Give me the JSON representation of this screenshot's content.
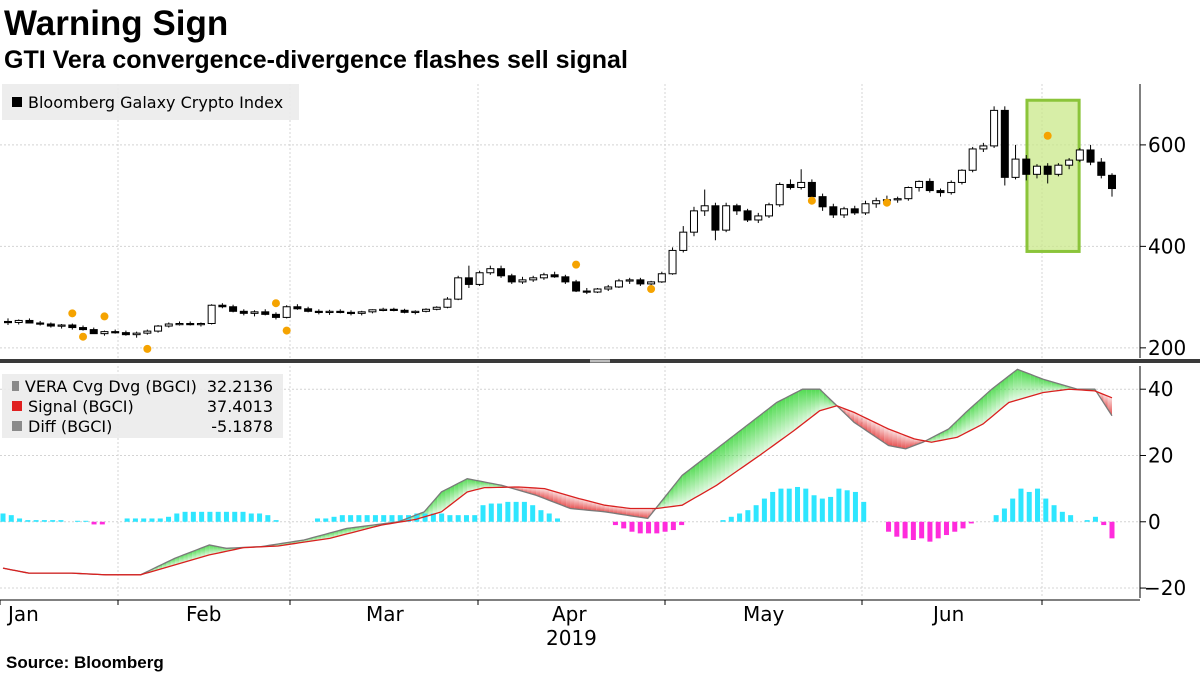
{
  "header": {
    "title": "Warning Sign",
    "subtitle": "GTI Vera convergence-divergence flashes sell signal"
  },
  "footer": {
    "source": "Source: Bloomberg"
  },
  "colors": {
    "candle_up": "#ffffff",
    "candle_down": "#000000",
    "signal_dots": "#f5a300",
    "highlight_fill": "#c9e88a",
    "highlight_stroke": "#8bc43a",
    "vera_line": "#7a7a7a",
    "signal_line": "#d9201f",
    "hist_positive": "#2ee6ff",
    "hist_negative": "#ff2bdc",
    "fill_above": "#3fd73f",
    "fill_below": "#e23a3a"
  },
  "chart_data": [
    {
      "type": "candlestick",
      "legend": [
        {
          "name": "Bloomberg Galaxy Crypto Index",
          "color": "#000000"
        }
      ],
      "x_ticks": [
        "Jan",
        "Feb",
        "Mar",
        "Apr",
        "May",
        "Jun"
      ],
      "x_year": "2019",
      "y_ticks": [
        200,
        400,
        600
      ],
      "ylim": [
        180,
        720
      ],
      "ohlc": [
        [
          252,
          258,
          245,
          250
        ],
        [
          250,
          256,
          246,
          254
        ],
        [
          254,
          258,
          248,
          249
        ],
        [
          249,
          253,
          244,
          247
        ],
        [
          247,
          250,
          240,
          243
        ],
        [
          243,
          247,
          238,
          245
        ],
        [
          245,
          248,
          236,
          240
        ],
        [
          240,
          244,
          234,
          236
        ],
        [
          236,
          240,
          228,
          228
        ],
        [
          228,
          234,
          224,
          232
        ],
        [
          232,
          236,
          228,
          230
        ],
        [
          230,
          234,
          224,
          226
        ],
        [
          226,
          232,
          220,
          229
        ],
        [
          229,
          236,
          226,
          233
        ],
        [
          233,
          245,
          230,
          243
        ],
        [
          243,
          250,
          240,
          247
        ],
        [
          247,
          252,
          244,
          248
        ],
        [
          248,
          252,
          244,
          246
        ],
        [
          246,
          250,
          242,
          248
        ],
        [
          248,
          286,
          246,
          284
        ],
        [
          284,
          288,
          278,
          281
        ],
        [
          281,
          285,
          270,
          272
        ],
        [
          272,
          276,
          264,
          268
        ],
        [
          268,
          274,
          262,
          271
        ],
        [
          271,
          276,
          264,
          266
        ],
        [
          266,
          270,
          256,
          260
        ],
        [
          260,
          284,
          258,
          281
        ],
        [
          281,
          286,
          275,
          277
        ],
        [
          277,
          281,
          270,
          272
        ],
        [
          272,
          276,
          266,
          270
        ],
        [
          270,
          275,
          265,
          272
        ],
        [
          272,
          276,
          268,
          270
        ],
        [
          270,
          274,
          264,
          268
        ],
        [
          268,
          273,
          264,
          271
        ],
        [
          271,
          276,
          268,
          275
        ],
        [
          275,
          279,
          272,
          276
        ],
        [
          276,
          279,
          272,
          274
        ],
        [
          274,
          277,
          268,
          270
        ],
        [
          270,
          274,
          266,
          272
        ],
        [
          272,
          278,
          270,
          276
        ],
        [
          276,
          282,
          274,
          280
        ],
        [
          280,
          300,
          278,
          296
        ],
        [
          296,
          342,
          294,
          338
        ],
        [
          338,
          362,
          318,
          325
        ],
        [
          325,
          352,
          322,
          348
        ],
        [
          348,
          362,
          344,
          356
        ],
        [
          356,
          362,
          338,
          342
        ],
        [
          342,
          346,
          326,
          330
        ],
        [
          330,
          340,
          326,
          334
        ],
        [
          334,
          342,
          330,
          338
        ],
        [
          338,
          348,
          334,
          344
        ],
        [
          344,
          350,
          338,
          340
        ],
        [
          340,
          344,
          326,
          330
        ],
        [
          330,
          334,
          310,
          312
        ],
        [
          312,
          318,
          306,
          310
        ],
        [
          310,
          318,
          308,
          316
        ],
        [
          316,
          324,
          312,
          320
        ],
        [
          320,
          336,
          318,
          332
        ],
        [
          332,
          338,
          326,
          334
        ],
        [
          334,
          338,
          322,
          326
        ],
        [
          326,
          332,
          322,
          330
        ],
        [
          330,
          350,
          328,
          346
        ],
        [
          346,
          398,
          344,
          392
        ],
        [
          392,
          440,
          388,
          428
        ],
        [
          428,
          478,
          420,
          470
        ],
        [
          470,
          512,
          460,
          480
        ],
        [
          480,
          486,
          412,
          432
        ],
        [
          432,
          486,
          428,
          480
        ],
        [
          480,
          484,
          462,
          470
        ],
        [
          470,
          474,
          448,
          452
        ],
        [
          452,
          466,
          446,
          460
        ],
        [
          460,
          486,
          456,
          482
        ],
        [
          482,
          526,
          478,
          522
        ],
        [
          522,
          532,
          512,
          516
        ],
        [
          516,
          552,
          512,
          526
        ],
        [
          526,
          532,
          490,
          498
        ],
        [
          498,
          504,
          470,
          478
        ],
        [
          478,
          484,
          456,
          462
        ],
        [
          462,
          478,
          456,
          474
        ],
        [
          474,
          480,
          462,
          466
        ],
        [
          466,
          490,
          462,
          484
        ],
        [
          484,
          496,
          476,
          490
        ],
        [
          490,
          500,
          482,
          492
        ],
        [
          492,
          498,
          486,
          494
        ],
        [
          494,
          518,
          490,
          516
        ],
        [
          516,
          530,
          508,
          528
        ],
        [
          528,
          534,
          506,
          510
        ],
        [
          510,
          514,
          498,
          506
        ],
        [
          506,
          530,
          502,
          526
        ],
        [
          526,
          552,
          522,
          550
        ],
        [
          550,
          596,
          546,
          592
        ],
        [
          592,
          604,
          586,
          598
        ],
        [
          598,
          676,
          594,
          668
        ],
        [
          668,
          676,
          520,
          536
        ],
        [
          536,
          600,
          532,
          572
        ],
        [
          572,
          580,
          530,
          542
        ],
        [
          542,
          562,
          534,
          558
        ],
        [
          558,
          564,
          524,
          542
        ],
        [
          542,
          564,
          538,
          560
        ],
        [
          560,
          574,
          552,
          570
        ],
        [
          570,
          594,
          566,
          590
        ],
        [
          590,
          600,
          560,
          566
        ],
        [
          566,
          574,
          534,
          540
        ],
        [
          540,
          544,
          498,
          514
        ]
      ],
      "signals": [
        {
          "i": 6,
          "y": 268
        },
        {
          "i": 7,
          "y": 222
        },
        {
          "i": 9,
          "y": 262
        },
        {
          "i": 13,
          "y": 198
        },
        {
          "i": 25,
          "y": 288
        },
        {
          "i": 26,
          "y": 234
        },
        {
          "i": 53,
          "y": 364
        },
        {
          "i": 60,
          "y": 316
        },
        {
          "i": 75,
          "y": 490
        },
        {
          "i": 82,
          "y": 486
        },
        {
          "i": 97,
          "y": 618
        }
      ],
      "highlight": {
        "from_index": 96,
        "to_index": 99,
        "y_low": 390,
        "y_high": 688
      }
    },
    {
      "type": "line",
      "legend": [
        {
          "name": "VERA Cvg Dvg (BGCI)",
          "value": "32.2136",
          "color": "#8a8a8a"
        },
        {
          "name": "Signal (BGCI)",
          "value": "37.4013",
          "color": "#e02020"
        },
        {
          "name": "Diff (BGCI)",
          "value": "-5.1878",
          "color": "#8a8a8a"
        }
      ],
      "y_ticks": [
        -20,
        0,
        20,
        40
      ],
      "ylim": [
        -23,
        47
      ],
      "vera_keys": [
        [
          0,
          -14
        ],
        [
          3,
          -15.5
        ],
        [
          8,
          -15.5
        ],
        [
          12,
          -16
        ],
        [
          16,
          -16
        ],
        [
          20,
          -11
        ],
        [
          24,
          -7
        ],
        [
          26,
          -8
        ],
        [
          30,
          -7.5
        ],
        [
          35,
          -5.5
        ],
        [
          40,
          -2
        ],
        [
          46,
          0
        ],
        [
          49,
          3
        ],
        [
          51,
          9
        ],
        [
          54,
          13
        ],
        [
          58,
          11
        ],
        [
          62,
          8
        ],
        [
          66,
          4
        ],
        [
          70,
          3
        ],
        [
          75,
          1
        ],
        [
          79,
          14
        ],
        [
          83,
          22
        ],
        [
          86,
          28
        ],
        [
          90,
          36
        ],
        [
          93,
          40
        ],
        [
          95,
          40
        ],
        [
          99,
          30
        ],
        [
          103,
          23
        ],
        [
          105,
          22
        ],
        [
          107,
          24
        ],
        [
          110,
          28
        ],
        [
          112,
          33
        ],
        [
          115,
          40
        ],
        [
          118,
          46
        ],
        [
          121,
          43
        ],
        [
          125,
          40
        ],
        [
          127,
          40
        ],
        [
          129,
          32
        ]
      ],
      "signal_keys": [
        [
          0,
          -14
        ],
        [
          3,
          -15.5
        ],
        [
          8,
          -15.5
        ],
        [
          12,
          -16
        ],
        [
          16,
          -16
        ],
        [
          20,
          -13
        ],
        [
          24,
          -10
        ],
        [
          28,
          -7.8
        ],
        [
          32,
          -7.3
        ],
        [
          38,
          -5
        ],
        [
          44,
          -1
        ],
        [
          48,
          0.7
        ],
        [
          51,
          3
        ],
        [
          54,
          9
        ],
        [
          56,
          10.3
        ],
        [
          60,
          10.5
        ],
        [
          63,
          10
        ],
        [
          67,
          7
        ],
        [
          70,
          5
        ],
        [
          73,
          4
        ],
        [
          76,
          4
        ],
        [
          79,
          5
        ],
        [
          83,
          11
        ],
        [
          88,
          20
        ],
        [
          92,
          27.5
        ],
        [
          95,
          33.5
        ],
        [
          97,
          35
        ],
        [
          99,
          33
        ],
        [
          103,
          28
        ],
        [
          106,
          25
        ],
        [
          108,
          24
        ],
        [
          111,
          25.5
        ],
        [
          114,
          29.5
        ],
        [
          117,
          36
        ],
        [
          121,
          39
        ],
        [
          124,
          40
        ],
        [
          127,
          39.5
        ],
        [
          129,
          37.4
        ]
      ],
      "hist": [
        2.5,
        2,
        1,
        0.5,
        0.5,
        0.5,
        0.5,
        0.5,
        0,
        0.3,
        0.3,
        -0.8,
        -0.8,
        0,
        0,
        1,
        1,
        1,
        1,
        1,
        1.5,
        2.5,
        3,
        3,
        3,
        3,
        3,
        3,
        3,
        3,
        2.5,
        2.5,
        2,
        0.5,
        0,
        0,
        0,
        0,
        1,
        1,
        1.5,
        2,
        2,
        2,
        2,
        2,
        2,
        2,
        2,
        2,
        2.5,
        2.5,
        2.5,
        2.5,
        2,
        2,
        2,
        2,
        5,
        5.5,
        5.5,
        6,
        6,
        6,
        5,
        3.5,
        2.5,
        1,
        0,
        0,
        0,
        0,
        0,
        0,
        -1,
        -2,
        -3,
        -3.5,
        -3.5,
        -3.5,
        -3,
        -2.5,
        -1,
        0,
        0,
        0,
        0,
        0.5,
        1.5,
        2.5,
        3.5,
        5,
        7,
        9,
        10,
        10,
        10.5,
        10,
        8,
        7,
        7.5,
        10,
        9.5,
        9,
        6,
        0,
        0,
        -3,
        -4.5,
        -5,
        -5.5,
        -5,
        -6,
        -5,
        -4,
        -3,
        -2,
        -0.5,
        0,
        0,
        2,
        4,
        7,
        10,
        9,
        10,
        7,
        5,
        3,
        2,
        0,
        0.5,
        1.5,
        -1,
        -5
      ],
      "hist_scale": [
        0,
        1.2
      ]
    }
  ]
}
